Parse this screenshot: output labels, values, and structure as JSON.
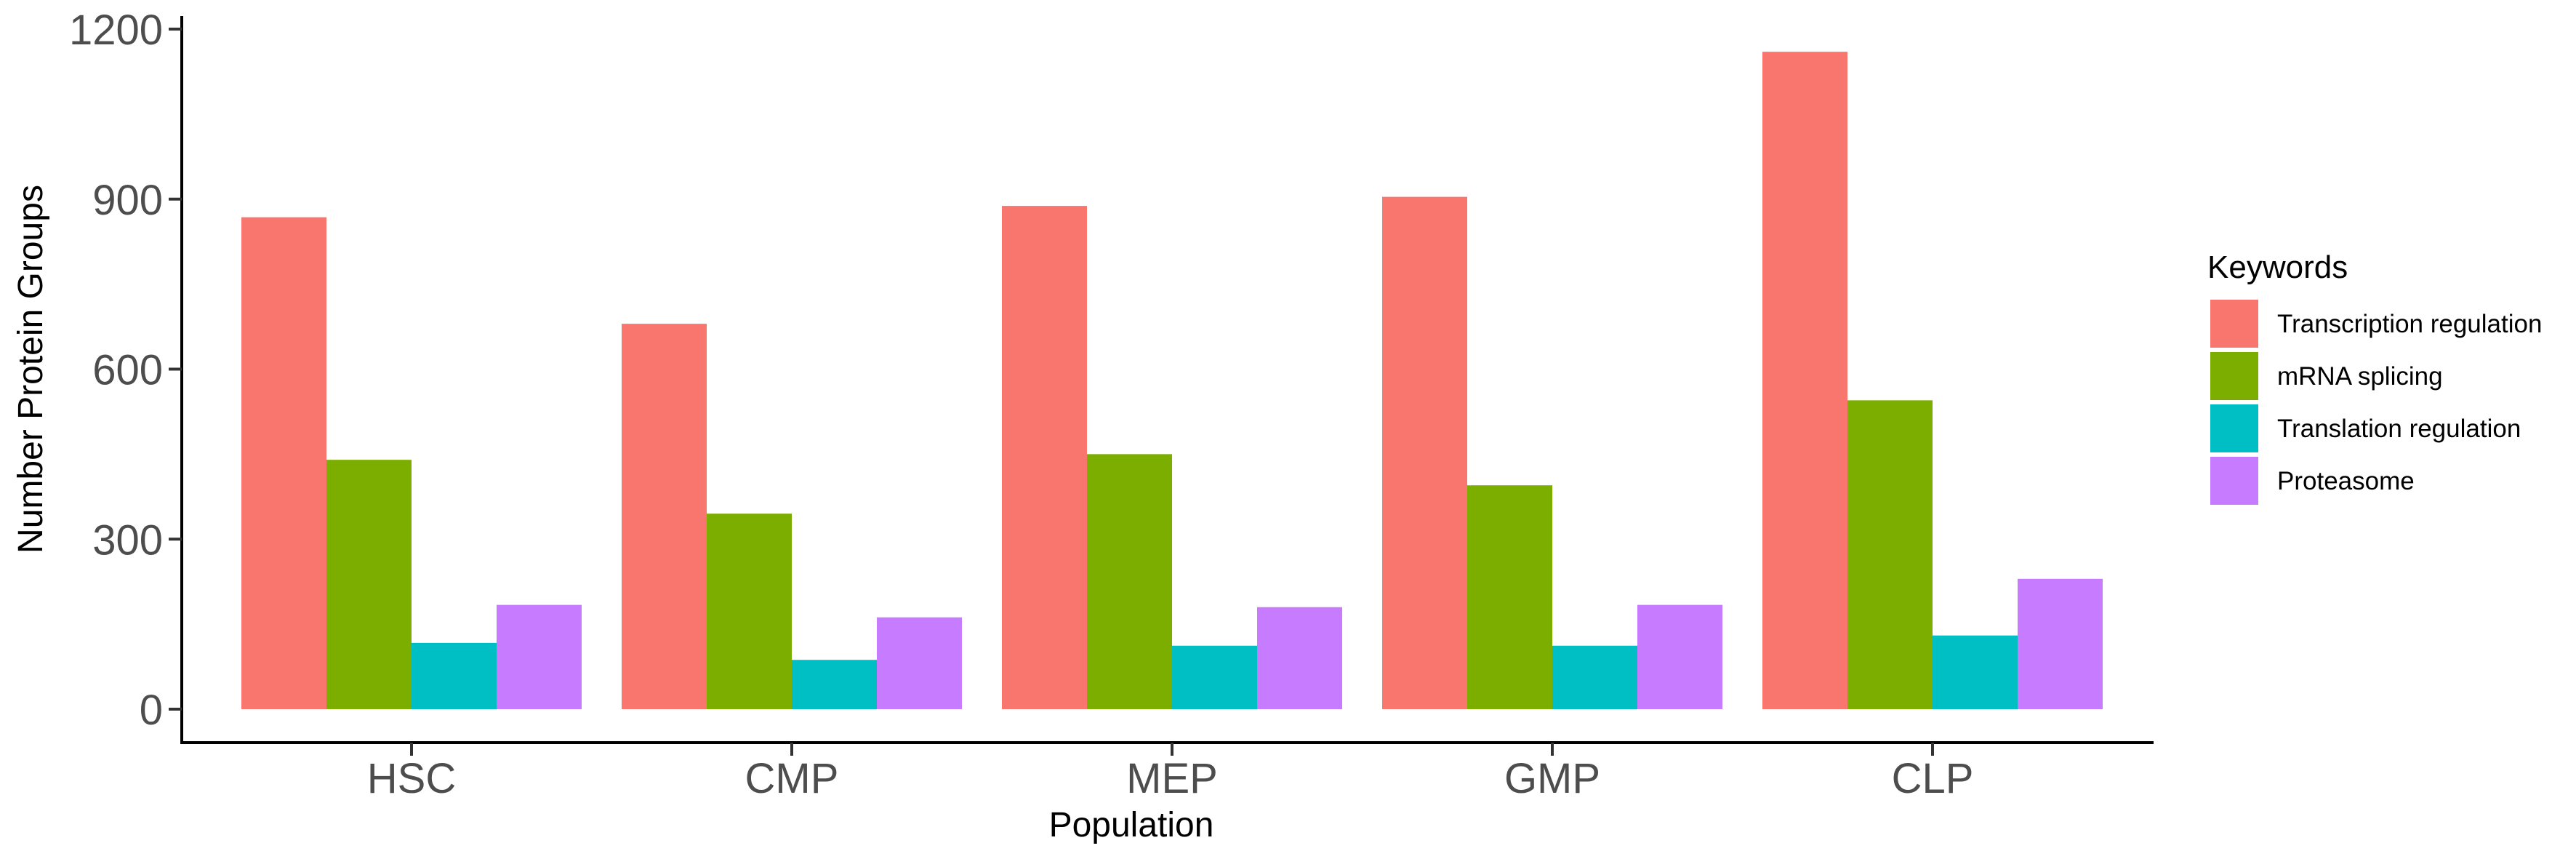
{
  "chart_data": {
    "type": "bar",
    "xlabel": "Population",
    "ylabel": "Number Protein Groups",
    "categories": [
      "HSC",
      "CMP",
      "MEP",
      "GMP",
      "CLP"
    ],
    "ylim": [
      0,
      1200
    ],
    "yticks": [
      0,
      300,
      600,
      900,
      1200
    ],
    "grid": false,
    "legend": {
      "title": "Keywords",
      "position": "right"
    },
    "series": [
      {
        "name": "Transcription regulation",
        "color": "#F8766D",
        "values": [
          868,
          680,
          888,
          904,
          1160
        ]
      },
      {
        "name": "mRNA splicing",
        "color": "#7CAE00",
        "values": [
          440,
          345,
          450,
          395,
          545
        ]
      },
      {
        "name": "Translation regulation",
        "color": "#00BFC4",
        "values": [
          117,
          87,
          112,
          112,
          130
        ]
      },
      {
        "name": "Proteasome",
        "color": "#C77CFF",
        "values": [
          184,
          162,
          180,
          184,
          230
        ]
      }
    ]
  }
}
